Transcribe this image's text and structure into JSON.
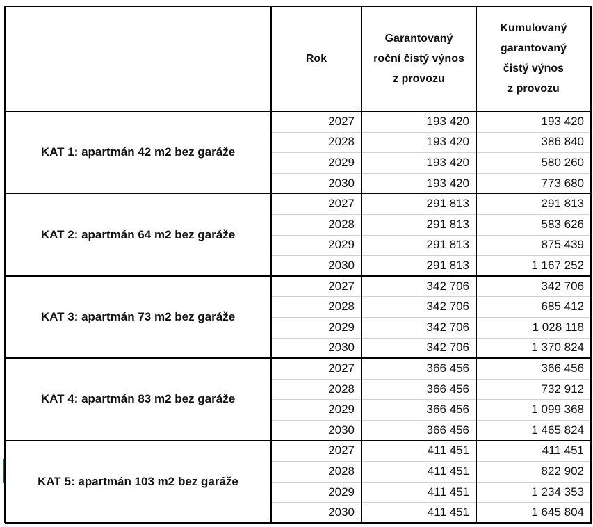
{
  "header": [
    [
      "Rok"
    ],
    [
      "Garantovaný",
      "roční čistý výnos",
      "z provozu"
    ],
    [
      "Kumulovaný",
      "garantovaný",
      "čistý výnos",
      "z provozu"
    ]
  ],
  "groups": [
    {
      "label": "KAT 1: apartmán 42 m2 bez garáže",
      "rows": [
        [
          2027,
          "193 420",
          "193 420"
        ],
        [
          2028,
          "193 420",
          "386 840"
        ],
        [
          2029,
          "193 420",
          "580 260"
        ],
        [
          2030,
          "193 420",
          "773 680"
        ]
      ]
    },
    {
      "label": "KAT 2: apartmán 64 m2 bez garáže",
      "rows": [
        [
          2027,
          "291 813",
          "291 813"
        ],
        [
          2028,
          "291 813",
          "583 626"
        ],
        [
          2029,
          "291 813",
          "875 439"
        ],
        [
          2030,
          "291 813",
          "1 167 252"
        ]
      ]
    },
    {
      "label": "KAT 3: apartmán 73 m2 bez garáže",
      "rows": [
        [
          2027,
          "342 706",
          "342 706"
        ],
        [
          2028,
          "342 706",
          "685 412"
        ],
        [
          2029,
          "342 706",
          "1 028 118"
        ],
        [
          2030,
          "342 706",
          "1 370 824"
        ]
      ]
    },
    {
      "label": "KAT 4: apartmán 83 m2 bez garáže",
      "rows": [
        [
          2027,
          "366 456",
          "366 456"
        ],
        [
          2028,
          "366 456",
          "732 912"
        ],
        [
          2029,
          "366 456",
          "1 099 368"
        ],
        [
          2030,
          "366 456",
          "1 465 824"
        ]
      ]
    },
    {
      "label": "KAT 5: apartmán 103 m2 bez garáže",
      "rows": [
        [
          2027,
          "411 451",
          "411 451"
        ],
        [
          2028,
          "411 451",
          "822 902"
        ],
        [
          2029,
          "411 451",
          "1 234 353"
        ],
        [
          2030,
          "411 451",
          "1 645 804"
        ]
      ]
    }
  ]
}
